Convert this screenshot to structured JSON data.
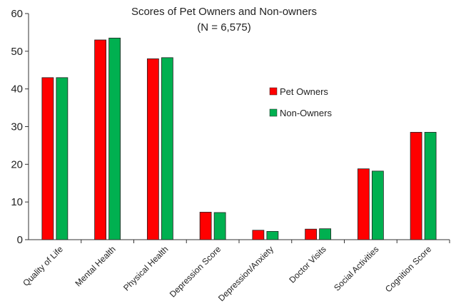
{
  "chart_data": {
    "type": "bar",
    "title": "Scores of Pet Owners and Non-owners",
    "subtitle": "(N = 6,575)",
    "categories": [
      "Quality of Life",
      "Mental Health",
      "Physical Health",
      "Depression Score",
      "Depression/Anxiety",
      "Doctor Visits",
      "Social Activities",
      "Cognition Score"
    ],
    "series": [
      {
        "name": "Pet Owners",
        "color": "#ff0000",
        "values": [
          43,
          53,
          48,
          7.3,
          2.5,
          2.8,
          18.8,
          28.5
        ]
      },
      {
        "name": "Non-Owners",
        "color": "#00b050",
        "values": [
          43,
          53.5,
          48.3,
          7.2,
          2.2,
          2.9,
          18.2,
          28.5
        ]
      }
    ],
    "ylim": [
      0,
      60
    ],
    "yticks": [
      0,
      10,
      20,
      30,
      40,
      50,
      60
    ],
    "xlabel": "",
    "ylabel": "",
    "grid": false,
    "legend": "center-right"
  }
}
